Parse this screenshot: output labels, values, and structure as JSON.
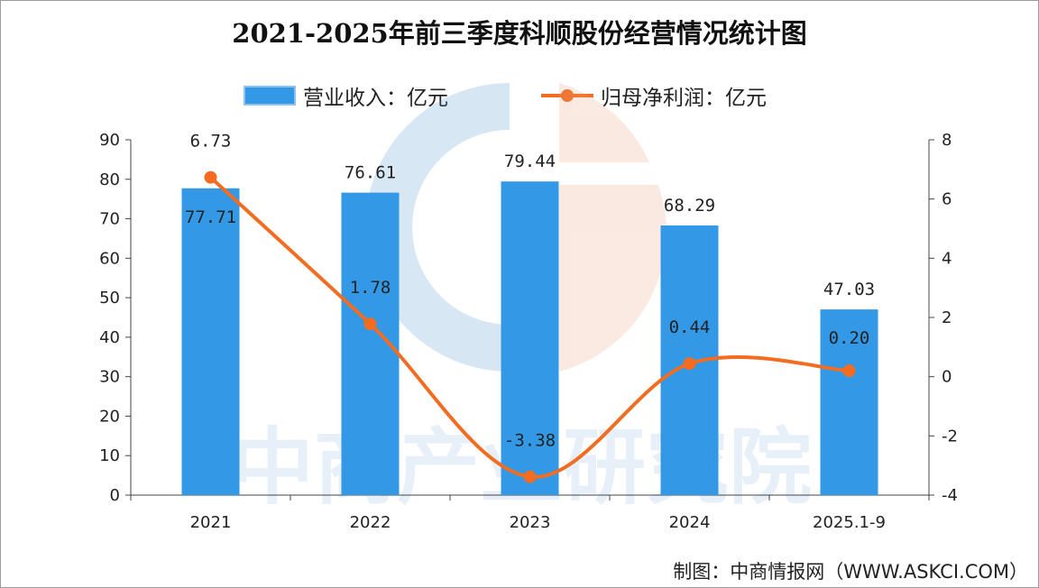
{
  "chart_data": {
    "type": "bar",
    "title": "2021-2025年前三季度科顺股份经营情况统计图",
    "categories": [
      "2021",
      "2022",
      "2023",
      "2024",
      "2025.1-9"
    ],
    "series": [
      {
        "name": "营业收入：亿元",
        "type": "bar",
        "axis": "left",
        "values": [
          77.71,
          76.61,
          79.44,
          68.29,
          47.03
        ],
        "labels": [
          "77.71",
          "76.61",
          "79.44",
          "68.29",
          "47.03"
        ]
      },
      {
        "name": "归母净利润：亿元",
        "type": "line",
        "axis": "right",
        "values": [
          6.73,
          1.78,
          -3.38,
          0.44,
          0.2
        ],
        "labels": [
          "6.73",
          "1.78",
          "-3.38",
          "0.44",
          "0.20"
        ]
      }
    ],
    "y_left": {
      "min": 0,
      "max": 90,
      "ticks": [
        "0",
        "10",
        "20",
        "30",
        "40",
        "50",
        "60",
        "70",
        "80",
        "90"
      ]
    },
    "y_right": {
      "min": -4,
      "max": 8,
      "ticks": [
        "-4",
        "-2",
        "0",
        "2",
        "4",
        "6",
        "8"
      ]
    },
    "legend_position": "top-center",
    "colors": {
      "bar": "#3399e6",
      "bar_light": "#8ec3ef",
      "line": "#f26c21"
    }
  },
  "watermark_text": "中商产业研究院",
  "source": "制图：中商情报网（WWW.ASKCI.COM）"
}
